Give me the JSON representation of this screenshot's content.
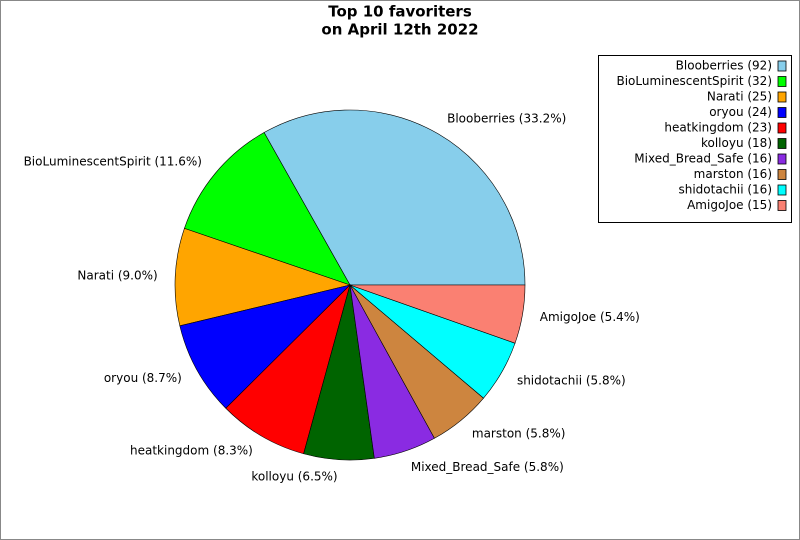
{
  "chart_data": {
    "type": "pie",
    "title": [
      "Top 10 favoriters",
      "on April 12th 2022"
    ],
    "values": [
      33.2,
      11.6,
      9.0,
      8.7,
      8.3,
      6.5,
      5.8,
      5.8,
      5.8,
      5.4
    ],
    "value_labels": [
      "Blooberries (33.2%)",
      "BioLuminescentSpirit (11.6%)",
      "Narati (9.0%)",
      "oryou (8.7%)",
      "heatkingdom (8.3%)",
      "kolloyu (6.5%)",
      "Mixed_Bread_Safe (5.8%)",
      "marston (5.8%)",
      "shidotachii (5.8%)",
      "AmigoJoe (5.4%)"
    ],
    "legend_labels": [
      "Blooberries (92)",
      "BioLuminescentSpirit (32)",
      "Narati (25)",
      "oryou (24)",
      "heatkingdom (23)",
      "kolloyu (18)",
      "Mixed_Bread_Safe (16)",
      "marston (16)",
      "shidotachii (16)",
      "AmigoJoe (15)"
    ],
    "colors": [
      "#87ceeb",
      "#00ff00",
      "#ffa500",
      "#0000ff",
      "#ff0000",
      "#006400",
      "#8a2be2",
      "#cd853f",
      "#00ffff",
      "#fa8072"
    ],
    "legend": "upper right"
  }
}
